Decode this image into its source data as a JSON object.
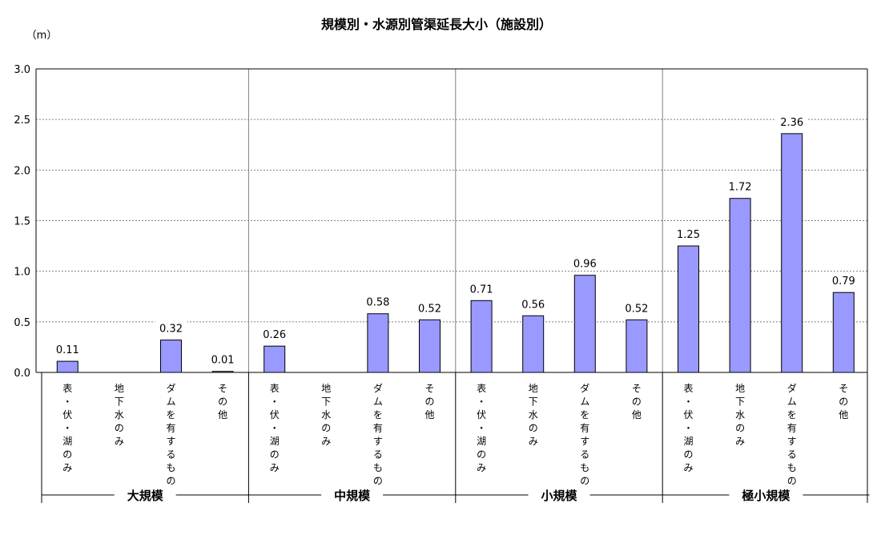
{
  "chart_data": {
    "type": "bar",
    "title": "規模別・水源別管渠延長大小（施設別）",
    "unit_label": "（m）",
    "ylim": [
      0,
      3.0
    ],
    "y_ticks": [
      "0.0",
      "0.5",
      "1.0",
      "1.5",
      "2.0",
      "2.5",
      "3.0"
    ],
    "grid": true,
    "bar_color": "#9999ff",
    "groups": [
      {
        "name": "大規模",
        "bars": [
          {
            "category": "表・伏・湖のみ",
            "value": 0.11,
            "label": "0.11"
          },
          {
            "category": "地下水のみ",
            "value": null,
            "label": ""
          },
          {
            "category": "ダムを有するもの",
            "value": 0.32,
            "label": "0.32"
          },
          {
            "category": "その他",
            "value": 0.01,
            "label": "0.01"
          }
        ]
      },
      {
        "name": "中規模",
        "bars": [
          {
            "category": "表・伏・湖のみ",
            "value": 0.26,
            "label": "0.26"
          },
          {
            "category": "地下水のみ",
            "value": null,
            "label": ""
          },
          {
            "category": "ダムを有するもの",
            "value": 0.58,
            "label": "0.58"
          },
          {
            "category": "その他",
            "value": 0.52,
            "label": "0.52"
          }
        ]
      },
      {
        "name": "小規模",
        "bars": [
          {
            "category": "表・伏・湖のみ",
            "value": 0.71,
            "label": "0.71"
          },
          {
            "category": "地下水のみ",
            "value": 0.56,
            "label": "0.56"
          },
          {
            "category": "ダムを有するもの",
            "value": 0.96,
            "label": "0.96"
          },
          {
            "category": "その他",
            "value": 0.52,
            "label": "0.52"
          }
        ]
      },
      {
        "name": "極小規模",
        "bars": [
          {
            "category": "表・伏・湖のみ",
            "value": 1.25,
            "label": "1.25"
          },
          {
            "category": "地下水のみ",
            "value": 1.72,
            "label": "1.72"
          },
          {
            "category": "ダムを有するもの",
            "value": 2.36,
            "label": "2.36"
          },
          {
            "category": "その他",
            "value": 0.79,
            "label": "0.79"
          }
        ]
      }
    ]
  }
}
